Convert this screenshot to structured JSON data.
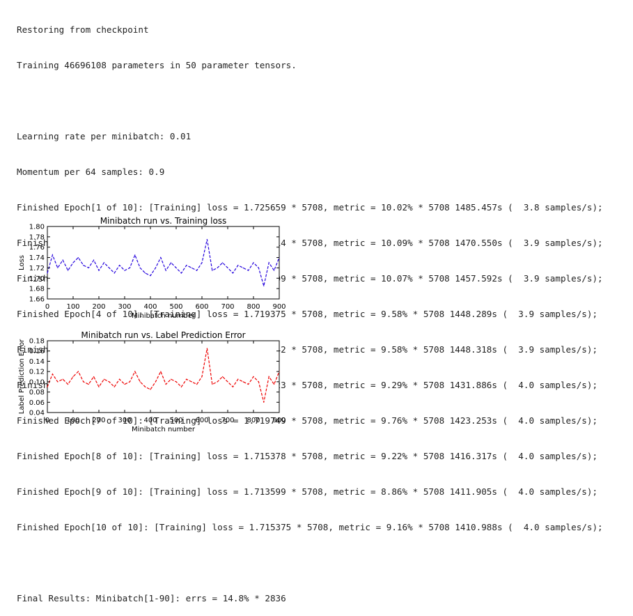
{
  "log": {
    "header_lines": [
      "Restoring from checkpoint",
      "Training 46696108 parameters in 50 parameter tensors."
    ],
    "params_lines": [
      "Learning rate per minibatch: 0.01",
      "Momentum per 64 samples: 0.9"
    ],
    "epoch_lines": [
      "Finished Epoch[1 of 10]: [Training] loss = 1.725659 * 5708, metric = 10.02% * 5708 1485.457s (  3.8 samples/s);",
      "Finished Epoch[2 of 10]: [Training] loss = 1.726014 * 5708, metric = 10.09% * 5708 1470.550s (  3.9 samples/s);",
      "Finished Epoch[3 of 10]: [Training] loss = 1.725209 * 5708, metric = 10.07% * 5708 1457.592s (  3.9 samples/s);",
      "Finished Epoch[4 of 10]: [Training] loss = 1.719375 * 5708, metric = 9.58% * 5708 1448.289s (  3.9 samples/s);",
      "Finished Epoch[5 of 10]: [Training] loss = 1.718742 * 5708, metric = 9.58% * 5708 1448.318s (  3.9 samples/s);",
      "Finished Epoch[6 of 10]: [Training] loss = 1.716123 * 5708, metric = 9.29% * 5708 1431.886s (  4.0 samples/s);",
      "Finished Epoch[7 of 10]: [Training] loss = 1.719749 * 5708, metric = 9.76% * 5708 1423.253s (  4.0 samples/s);",
      "Finished Epoch[8 of 10]: [Training] loss = 1.715378 * 5708, metric = 9.22% * 5708 1416.317s (  4.0 samples/s);",
      "Finished Epoch[9 of 10]: [Training] loss = 1.713599 * 5708, metric = 8.86% * 5708 1411.905s (  4.0 samples/s);",
      "Finished Epoch[10 of 10]: [Training] loss = 1.715375 * 5708, metric = 9.16% * 5708 1410.988s (  4.0 samples/s);"
    ],
    "final_result": "Final Results: Minibatch[1-90]: errs = 14.8% * 2836"
  },
  "chart_data": [
    {
      "type": "line",
      "title": "Minibatch run vs. Training loss",
      "xlabel": "Minibatch number",
      "ylabel": "Loss",
      "xlim": [
        0,
        900
      ],
      "ylim": [
        1.66,
        1.8
      ],
      "xticks": [
        0,
        100,
        200,
        300,
        400,
        500,
        600,
        700,
        800,
        900
      ],
      "yticks": [
        1.66,
        1.68,
        1.7,
        1.72,
        1.74,
        1.76,
        1.78,
        1.8
      ],
      "ytick_labels": [
        "1.66",
        "1.68",
        "1.70",
        "1.72",
        "1.74",
        "1.76",
        "1.78",
        "1.80"
      ],
      "color": "#2200dd",
      "line_style": "dashed",
      "grid": false,
      "x": [
        0,
        20,
        40,
        60,
        80,
        100,
        120,
        140,
        160,
        180,
        200,
        220,
        240,
        260,
        280,
        300,
        320,
        340,
        360,
        380,
        400,
        420,
        440,
        460,
        480,
        500,
        520,
        540,
        560,
        580,
        600,
        620,
        640,
        660,
        680,
        700,
        720,
        740,
        760,
        780,
        800,
        820,
        840,
        860,
        880,
        900
      ],
      "values": [
        1.71,
        1.745,
        1.72,
        1.735,
        1.715,
        1.73,
        1.74,
        1.725,
        1.72,
        1.735,
        1.715,
        1.73,
        1.72,
        1.71,
        1.725,
        1.715,
        1.72,
        1.745,
        1.72,
        1.71,
        1.705,
        1.72,
        1.74,
        1.715,
        1.73,
        1.72,
        1.71,
        1.725,
        1.72,
        1.715,
        1.73,
        1.775,
        1.715,
        1.72,
        1.73,
        1.72,
        1.71,
        1.725,
        1.72,
        1.715,
        1.73,
        1.72,
        1.685,
        1.73,
        1.715,
        1.74
      ]
    },
    {
      "type": "line",
      "title": "Minibatch run vs. Label Prediction Error",
      "xlabel": "Minibatch number",
      "ylabel": "Label Prediction Error",
      "xlim": [
        0,
        900
      ],
      "ylim": [
        0.04,
        0.18
      ],
      "xticks": [
        0,
        100,
        200,
        300,
        400,
        500,
        600,
        700,
        800,
        900
      ],
      "yticks": [
        0.04,
        0.06,
        0.08,
        0.1,
        0.12,
        0.14,
        0.16,
        0.18
      ],
      "ytick_labels": [
        "0.04",
        "0.06",
        "0.08",
        "0.10",
        "0.12",
        "0.14",
        "0.16",
        "0.18"
      ],
      "color": "#ee0000",
      "line_style": "dashed",
      "grid": false,
      "x": [
        0,
        20,
        40,
        60,
        80,
        100,
        120,
        140,
        160,
        180,
        200,
        220,
        240,
        260,
        280,
        300,
        320,
        340,
        360,
        380,
        400,
        420,
        440,
        460,
        480,
        500,
        520,
        540,
        560,
        580,
        600,
        620,
        640,
        660,
        680,
        700,
        720,
        740,
        760,
        780,
        800,
        820,
        840,
        860,
        880,
        900
      ],
      "values": [
        0.09,
        0.115,
        0.1,
        0.105,
        0.095,
        0.11,
        0.12,
        0.1,
        0.095,
        0.11,
        0.09,
        0.105,
        0.1,
        0.09,
        0.105,
        0.095,
        0.1,
        0.12,
        0.1,
        0.09,
        0.085,
        0.1,
        0.12,
        0.095,
        0.105,
        0.1,
        0.09,
        0.105,
        0.1,
        0.095,
        0.11,
        0.165,
        0.095,
        0.1,
        0.11,
        0.1,
        0.09,
        0.105,
        0.1,
        0.095,
        0.11,
        0.1,
        0.06,
        0.11,
        0.095,
        0.12
      ]
    }
  ]
}
